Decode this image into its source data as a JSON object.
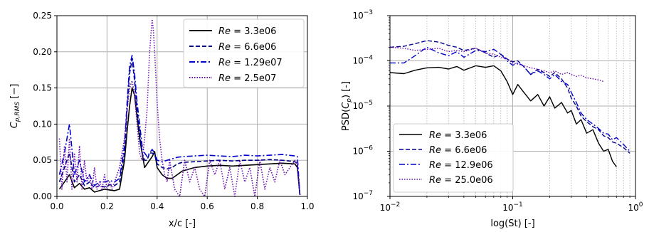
{
  "chart_data": [
    {
      "type": "line",
      "xlabel": "x/c [-]",
      "ylabel": "C_{p,RMS} [-]",
      "ylabel_main": "C",
      "ylabel_sub": "p,RMS",
      "ylabel_unit": " [−]",
      "xlim": [
        0,
        1
      ],
      "ylim": [
        0,
        0.25
      ],
      "xticks": [
        "0.0",
        "0.2",
        "0.4",
        "0.6",
        "0.8",
        "1.0"
      ],
      "yticks": [
        "0.00",
        "0.05",
        "0.10",
        "0.15",
        "0.20",
        "0.25"
      ],
      "grid": true,
      "legend_position": "top-right",
      "series": [
        {
          "name": "Re = 3.3e06",
          "legend_var": "Re",
          "legend_val": " = 3.3e06",
          "color": "#000000",
          "dash": "solid",
          "x": [
            0.01,
            0.03,
            0.05,
            0.07,
            0.09,
            0.11,
            0.13,
            0.15,
            0.17,
            0.19,
            0.21,
            0.23,
            0.25,
            0.27,
            0.28,
            0.29,
            0.3,
            0.31,
            0.32,
            0.33,
            0.34,
            0.35,
            0.36,
            0.37,
            0.38,
            0.39,
            0.4,
            0.42,
            0.44,
            0.46,
            0.48,
            0.5,
            0.55,
            0.6,
            0.65,
            0.7,
            0.75,
            0.8,
            0.85,
            0.9,
            0.95,
            0.96,
            0.97
          ],
          "y": [
            0.01,
            0.02,
            0.03,
            0.012,
            0.018,
            0.01,
            0.012,
            0.006,
            0.008,
            0.01,
            0.009,
            0.008,
            0.01,
            0.05,
            0.09,
            0.125,
            0.15,
            0.14,
            0.11,
            0.08,
            0.06,
            0.04,
            0.045,
            0.05,
            0.055,
            0.062,
            0.04,
            0.03,
            0.025,
            0.025,
            0.03,
            0.035,
            0.04,
            0.042,
            0.043,
            0.042,
            0.043,
            0.044,
            0.045,
            0.046,
            0.045,
            0.04,
            0.002
          ]
        },
        {
          "name": "Re = 6.6e06",
          "legend_var": "Re",
          "legend_val": " = 6.6e06",
          "color": "#00008b",
          "dash": "dashed",
          "x": [
            0.01,
            0.03,
            0.05,
            0.07,
            0.09,
            0.11,
            0.13,
            0.15,
            0.17,
            0.19,
            0.21,
            0.23,
            0.25,
            0.27,
            0.28,
            0.29,
            0.3,
            0.31,
            0.32,
            0.33,
            0.34,
            0.35,
            0.36,
            0.37,
            0.38,
            0.39,
            0.4,
            0.42,
            0.44,
            0.46,
            0.48,
            0.5,
            0.55,
            0.6,
            0.65,
            0.7,
            0.75,
            0.8,
            0.85,
            0.9,
            0.95,
            0.96,
            0.97
          ],
          "y": [
            0.02,
            0.04,
            0.06,
            0.02,
            0.03,
            0.015,
            0.02,
            0.012,
            0.015,
            0.013,
            0.016,
            0.015,
            0.02,
            0.06,
            0.12,
            0.17,
            0.19,
            0.16,
            0.12,
            0.09,
            0.06,
            0.05,
            0.05,
            0.06,
            0.06,
            0.058,
            0.045,
            0.04,
            0.038,
            0.04,
            0.045,
            0.047,
            0.048,
            0.049,
            0.05,
            0.049,
            0.05,
            0.05,
            0.051,
            0.05,
            0.048,
            0.045,
            0.002
          ]
        },
        {
          "name": "Re = 1.29e07",
          "legend_var": "Re",
          "legend_val": " = 1.29e07",
          "color": "#0000cd",
          "dash": "dashdot",
          "x": [
            0.01,
            0.03,
            0.05,
            0.07,
            0.09,
            0.11,
            0.13,
            0.15,
            0.17,
            0.19,
            0.21,
            0.23,
            0.25,
            0.27,
            0.28,
            0.29,
            0.3,
            0.31,
            0.32,
            0.33,
            0.34,
            0.35,
            0.36,
            0.37,
            0.38,
            0.39,
            0.4,
            0.42,
            0.44,
            0.46,
            0.48,
            0.5,
            0.55,
            0.6,
            0.65,
            0.7,
            0.75,
            0.8,
            0.85,
            0.9,
            0.95,
            0.96,
            0.97
          ],
          "y": [
            0.03,
            0.06,
            0.1,
            0.03,
            0.05,
            0.02,
            0.03,
            0.015,
            0.02,
            0.02,
            0.022,
            0.02,
            0.025,
            0.07,
            0.13,
            0.18,
            0.195,
            0.17,
            0.13,
            0.1,
            0.07,
            0.06,
            0.055,
            0.06,
            0.065,
            0.06,
            0.05,
            0.048,
            0.05,
            0.052,
            0.054,
            0.055,
            0.056,
            0.057,
            0.056,
            0.055,
            0.057,
            0.056,
            0.057,
            0.058,
            0.056,
            0.055,
            0.002
          ]
        },
        {
          "name": "Re = 2.5e07",
          "legend_var": "Re",
          "legend_val": " = 2.5e07",
          "color": "#6a0dad",
          "dash": "dotted",
          "x": [
            0.01,
            0.02,
            0.03,
            0.04,
            0.05,
            0.06,
            0.07,
            0.08,
            0.09,
            0.1,
            0.11,
            0.12,
            0.13,
            0.14,
            0.15,
            0.16,
            0.17,
            0.18,
            0.19,
            0.2,
            0.21,
            0.22,
            0.23,
            0.24,
            0.25,
            0.26,
            0.27,
            0.28,
            0.29,
            0.3,
            0.31,
            0.32,
            0.33,
            0.34,
            0.35,
            0.36,
            0.37,
            0.38,
            0.385,
            0.39,
            0.4,
            0.41,
            0.42,
            0.43,
            0.44,
            0.45,
            0.47,
            0.49,
            0.51,
            0.53,
            0.55,
            0.57,
            0.59,
            0.61,
            0.63,
            0.65,
            0.67,
            0.69,
            0.71,
            0.73,
            0.75,
            0.77,
            0.79,
            0.81,
            0.83,
            0.85,
            0.87,
            0.89,
            0.91,
            0.93,
            0.95,
            0.96,
            0.97
          ],
          "y": [
            0.08,
            0.01,
            0.07,
            0.02,
            0.08,
            0.01,
            0.06,
            0.02,
            0.07,
            0.01,
            0.05,
            0.02,
            0.03,
            0.01,
            0.04,
            0.01,
            0.02,
            0.01,
            0.03,
            0.01,
            0.02,
            0.01,
            0.02,
            0.03,
            0.04,
            0.06,
            0.08,
            0.12,
            0.15,
            0.16,
            0.14,
            0.1,
            0.06,
            0.05,
            0.08,
            0.12,
            0.2,
            0.245,
            0.23,
            0.2,
            0.13,
            0.08,
            0.05,
            0.03,
            0.02,
            0.05,
            0.01,
            0.0,
            0.05,
            0.02,
            0.04,
            0.01,
            0.0,
            0.05,
            0.03,
            0.05,
            0.01,
            0.04,
            0.0,
            0.05,
            0.02,
            0.04,
            0.0,
            0.05,
            0.01,
            0.04,
            0.02,
            0.05,
            0.03,
            0.04,
            0.05,
            0.045,
            0.002
          ]
        }
      ]
    },
    {
      "type": "line",
      "xlabel": "log(St) [-]",
      "ylabel": "PSD(C_p) [-]",
      "ylabel_pre": "PSD(",
      "ylabel_main": "C",
      "ylabel_sub": "p",
      "ylabel_post": ") [-]",
      "xscale": "log",
      "yscale": "log",
      "xlim": [
        0.01,
        1
      ],
      "ylim": [
        1e-07,
        0.001
      ],
      "xticks": [
        {
          "base": "10",
          "exp": "−2",
          "value": 0.01
        },
        {
          "base": "10",
          "exp": "−1",
          "value": 0.1
        },
        {
          "base": "10",
          "exp": "0",
          "value": 1
        }
      ],
      "yticks": [
        {
          "base": "10",
          "exp": "−7",
          "value": 1e-07
        },
        {
          "base": "10",
          "exp": "−6",
          "value": 1e-06
        },
        {
          "base": "10",
          "exp": "−5",
          "value": 1e-05
        },
        {
          "base": "10",
          "exp": "−4",
          "value": 0.0001
        },
        {
          "base": "10",
          "exp": "−3",
          "value": 0.001
        }
      ],
      "grid": true,
      "legend_position": "bottom-left",
      "series": [
        {
          "name": "Re = 3.3e06",
          "legend_var": "Re",
          "legend_val": " = 3.3e06",
          "color": "#000000",
          "dash": "solid",
          "x": [
            0.01,
            0.013,
            0.016,
            0.02,
            0.025,
            0.03,
            0.035,
            0.04,
            0.05,
            0.06,
            0.07,
            0.08,
            0.09,
            0.1,
            0.11,
            0.12,
            0.14,
            0.16,
            0.18,
            0.2,
            0.22,
            0.25,
            0.28,
            0.3,
            0.33,
            0.36,
            0.4,
            0.45,
            0.5,
            0.55,
            0.6,
            0.65,
            0.7
          ],
          "y": [
            5.5e-05,
            5.2e-05,
            6.2e-05,
            7e-05,
            7.2e-05,
            6.6e-05,
            7.5e-05,
            6.2e-05,
            7.8e-05,
            7.2e-05,
            7.8e-05,
            6e-05,
            3.5e-05,
            1.8e-05,
            3e-05,
            2.2e-05,
            1.3e-05,
            1.8e-05,
            1e-05,
            1.6e-05,
            9e-06,
            1.2e-05,
            7e-06,
            8e-06,
            4e-06,
            5e-06,
            2.5e-06,
            3e-06,
            1.5e-06,
            1e-06,
            1.1e-06,
            6e-07,
            4.5e-07
          ]
        },
        {
          "name": "Re = 6.6e06",
          "legend_var": "Re",
          "legend_val": " = 6.6e06",
          "color": "#00008b",
          "dash": "dashed",
          "x": [
            0.01,
            0.013,
            0.016,
            0.02,
            0.025,
            0.03,
            0.035,
            0.04,
            0.05,
            0.06,
            0.07,
            0.08,
            0.09,
            0.1,
            0.11,
            0.12,
            0.14,
            0.16,
            0.18,
            0.2,
            0.22,
            0.25,
            0.28,
            0.3,
            0.33,
            0.36,
            0.4,
            0.45,
            0.5,
            0.55,
            0.6,
            0.65,
            0.7,
            0.8,
            0.9
          ],
          "y": [
            0.0002,
            0.00021,
            0.00024,
            0.00028,
            0.00026,
            0.00022,
            0.0002,
            0.00017,
            0.00019,
            0.00015,
            0.00012,
            0.00014,
            0.00011,
            9.5e-05,
            0.0001,
            8e-05,
            5e-05,
            6.5e-05,
            5.5e-05,
            4.5e-05,
            5.5e-05,
            4e-05,
            2.5e-05,
            1.5e-05,
            1e-05,
            6e-06,
            4.5e-06,
            3.5e-06,
            3e-06,
            2.2e-06,
            2e-06,
            1.6e-06,
            1.5e-06,
            1.2e-06,
            9e-07
          ]
        },
        {
          "name": "Re = 12.9e06",
          "legend_var": "Re",
          "legend_val": " = 12.9e06",
          "color": "#0000cd",
          "dash": "dashdot",
          "x": [
            0.01,
            0.013,
            0.016,
            0.02,
            0.025,
            0.03,
            0.035,
            0.04,
            0.05,
            0.06,
            0.07,
            0.08,
            0.09,
            0.1,
            0.11,
            0.12,
            0.14,
            0.16,
            0.18,
            0.2,
            0.22,
            0.25,
            0.28,
            0.3,
            0.33,
            0.36,
            0.4,
            0.45,
            0.5,
            0.55,
            0.6,
            0.65,
            0.7,
            0.8,
            0.9
          ],
          "y": [
            9e-05,
            9e-05,
            0.00013,
            0.0002,
            0.00015,
            0.00013,
            0.00016,
            0.00012,
            0.00017,
            0.00016,
            0.00018,
            0.00014,
            0.0001,
            8e-05,
            9e-05,
            8e-05,
            5e-05,
            6e-05,
            5e-05,
            4e-05,
            5e-05,
            3.5e-05,
            3e-05,
            2e-05,
            1.2e-05,
            7e-06,
            5e-06,
            4e-06,
            3.2e-06,
            2.5e-06,
            2.4e-06,
            1.8e-06,
            2e-06,
            1.4e-06,
            1e-06
          ]
        },
        {
          "name": "Re = 25.0e06",
          "legend_var": "Re",
          "legend_val": " = 25.0e06",
          "color": "#6a0dad",
          "dash": "dotted",
          "x": [
            0.01,
            0.013,
            0.016,
            0.02,
            0.025,
            0.03,
            0.035,
            0.04,
            0.05,
            0.06,
            0.07,
            0.08,
            0.09,
            0.1,
            0.12,
            0.14,
            0.16,
            0.18,
            0.2,
            0.22,
            0.25,
            0.28,
            0.3,
            0.33,
            0.36,
            0.4,
            0.45,
            0.5,
            0.55
          ],
          "y": [
            0.0002,
            0.00019,
            0.00017,
            0.00018,
            0.00019,
            0.00016,
            0.00017,
            0.00016,
            0.00019,
            0.00015,
            0.00014,
            0.00012,
            0.00011,
            9e-05,
            8e-05,
            7e-05,
            6.5e-05,
            6e-05,
            5.5e-05,
            6e-05,
            5e-05,
            5.5e-05,
            5e-05,
            4.5e-05,
            4.8e-05,
            4.2e-05,
            4e-05,
            3.8e-05,
            3.5e-05
          ]
        }
      ]
    }
  ]
}
